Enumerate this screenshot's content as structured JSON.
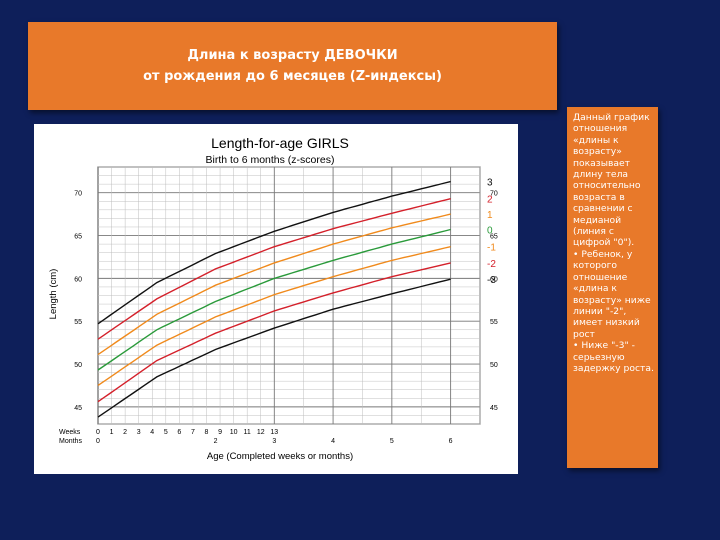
{
  "slide": {
    "title_line1": "Длина к возрасту  ДЕВОЧКИ",
    "title_line2": "от рождения до 6 месяцев (Z-индексы)",
    "side_text": [
      "Данный график отношения «длины к возрасту» показывает длину тела относительно возраста в сравнении с медианой (линия с цифрой \"0\").",
      "•  Ребенок, у которого отношение «длина  к возрасту» ниже линии \"-2\", имеет низкий рост",
      "•    Ниже \"-3\" - серьезную задержку роста."
    ]
  },
  "chart_data": {
    "type": "line",
    "title": "Length-for-age  GIRLS",
    "subtitle": "Birth to 6 months (z-scores)",
    "xlabel": "Age (Completed weeks or months)",
    "ylabel": "Length (cm)",
    "ylim": [
      43,
      73
    ],
    "xlim": [
      0,
      6.5
    ],
    "grid": true,
    "x_unit": "months",
    "y_ticks": [
      45,
      50,
      55,
      60,
      65,
      70
    ],
    "weeks_label": "Weeks",
    "months_label": "Months",
    "weeks_ticks": [
      "0",
      "1",
      "2",
      "3",
      "4",
      "5",
      "6",
      "7",
      "8",
      "9",
      "10",
      "11",
      "12",
      "13"
    ],
    "months_ticks": [
      "0",
      "2",
      "3",
      "4",
      "5",
      "6"
    ],
    "x": [
      0,
      1,
      2,
      3,
      4,
      5,
      6
    ],
    "series": [
      {
        "name": "3",
        "color": "#111111",
        "values": [
          54.7,
          59.5,
          62.9,
          65.5,
          67.7,
          69.6,
          71.3
        ]
      },
      {
        "name": "2",
        "color": "#d4202a",
        "values": [
          52.9,
          57.6,
          61.1,
          63.7,
          65.8,
          67.6,
          69.3
        ]
      },
      {
        "name": "1",
        "color": "#f08a1c",
        "values": [
          51.1,
          55.8,
          59.2,
          61.8,
          64.0,
          65.9,
          67.5
        ]
      },
      {
        "name": "0",
        "color": "#2a9a3a",
        "values": [
          49.3,
          54.0,
          57.3,
          60.0,
          62.1,
          64.0,
          65.7
        ]
      },
      {
        "name": "-1",
        "color": "#f08a1c",
        "values": [
          47.5,
          52.2,
          55.5,
          58.1,
          60.2,
          62.1,
          63.7
        ]
      },
      {
        "name": "-2",
        "color": "#d4202a",
        "values": [
          45.6,
          50.4,
          53.6,
          56.2,
          58.3,
          60.2,
          61.8
        ]
      },
      {
        "name": "-3",
        "color": "#111111",
        "values": [
          43.8,
          48.5,
          51.7,
          54.2,
          56.4,
          58.2,
          59.9
        ]
      }
    ]
  }
}
